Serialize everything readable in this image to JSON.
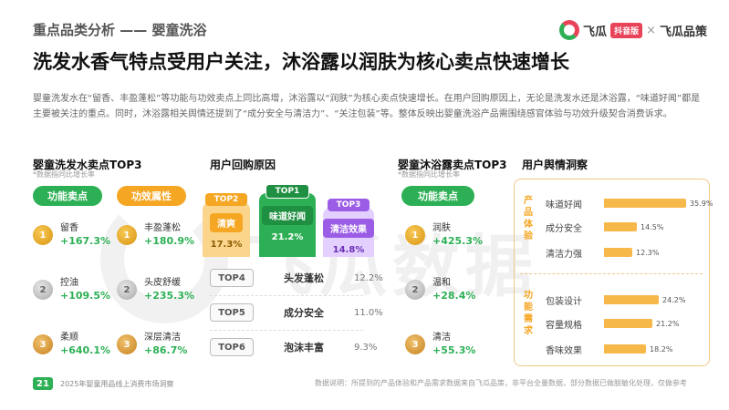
{
  "header": {
    "section_title": "重点品类分析 —— 婴童洗浴",
    "logo_name": "飞瓜",
    "logo_badge": "抖音版",
    "logo_sep": "×",
    "logo_partner": "飞瓜品策"
  },
  "main_title": "洗发水香气特点受用户关注，沐浴露以润肤为核心卖点快速增长",
  "intro": "婴童洗发水在“留香、丰盈蓬松”等功能与功效卖点上同比高增，沐浴露以“润肤”为核心卖点快速增长。在用户回购原因上，无论是洗发水还是沐浴露，“味道好闻”都是主要被关注的重点。同时，沐浴露相关舆情还提到了“成分安全与清洁力”、“关注包装”等。整体反映出婴童洗浴产品需围绕感官体验与功效升级契合消费诉求。",
  "shampoo": {
    "title": "婴童洗发水卖点TOP3",
    "note": "*数据指同比增长率",
    "col1_header": "功能卖点",
    "col2_header": "功效属性",
    "col1": [
      {
        "rank": "1",
        "name": "留香",
        "value": "+167.3%"
      },
      {
        "rank": "2",
        "name": "控油",
        "value": "+109.5%"
      },
      {
        "rank": "3",
        "name": "柔顺",
        "value": "+640.1%"
      }
    ],
    "col2": [
      {
        "rank": "1",
        "name": "丰盈蓬松",
        "value": "+180.9%"
      },
      {
        "rank": "2",
        "name": "头皮舒缓",
        "value": "+235.3%"
      },
      {
        "rank": "3",
        "name": "深层清洁",
        "value": "+86.7%"
      }
    ]
  },
  "repurchase": {
    "title": "用户回购原因",
    "podium": [
      {
        "tag": "TOP2",
        "label": "清爽",
        "pct": "17.3%"
      },
      {
        "tag": "TOP1",
        "label": "味道好闻",
        "pct": "21.2%"
      },
      {
        "tag": "TOP3",
        "label": "清洁效果",
        "pct": "14.8%"
      }
    ],
    "ranks": [
      {
        "tag": "TOP4",
        "label": "头发蓬松",
        "pct": "12.2%"
      },
      {
        "tag": "TOP5",
        "label": "成分安全",
        "pct": "11.0%"
      },
      {
        "tag": "TOP6",
        "label": "泡沫丰富",
        "pct": "9.3%"
      }
    ]
  },
  "bodywash": {
    "title": "婴童沐浴露卖点TOP3",
    "note": "*数据指同比增长率",
    "col_header": "功能卖点",
    "items": [
      {
        "rank": "1",
        "name": "润肤",
        "value": "+425.3%"
      },
      {
        "rank": "2",
        "name": "温和",
        "value": "+28.4%"
      },
      {
        "rank": "3",
        "name": "清洁",
        "value": "+55.3%"
      }
    ]
  },
  "sentiment": {
    "title": "用户舆情洞察",
    "group1_label": "产品体验",
    "group2_label": "功能需求",
    "group1": [
      {
        "label": "味道好闻",
        "value": 35.9,
        "text": "35.9%"
      },
      {
        "label": "成分安全",
        "value": 14.5,
        "text": "14.5%"
      },
      {
        "label": "清洁力强",
        "value": 12.3,
        "text": "12.3%"
      }
    ],
    "group2": [
      {
        "label": "包装设计",
        "value": 24.2,
        "text": "24.2%"
      },
      {
        "label": "容量规格",
        "value": 21.2,
        "text": "21.2%"
      },
      {
        "label": "香味效果",
        "value": 18.2,
        "text": "18.2%"
      }
    ]
  },
  "footer": {
    "page": "21",
    "report": "2025年婴童用品线上消费市场洞察",
    "source": "数据说明：所提到的产品体验和产品需求数据来自飞瓜品策，非平台全量数据，部分数据已做脱敏化处理，仅做参考"
  },
  "watermark": "飞瓜数据",
  "colors": {
    "green": "#2db055",
    "orange": "#f5a623",
    "bar": "#f7b84a"
  }
}
